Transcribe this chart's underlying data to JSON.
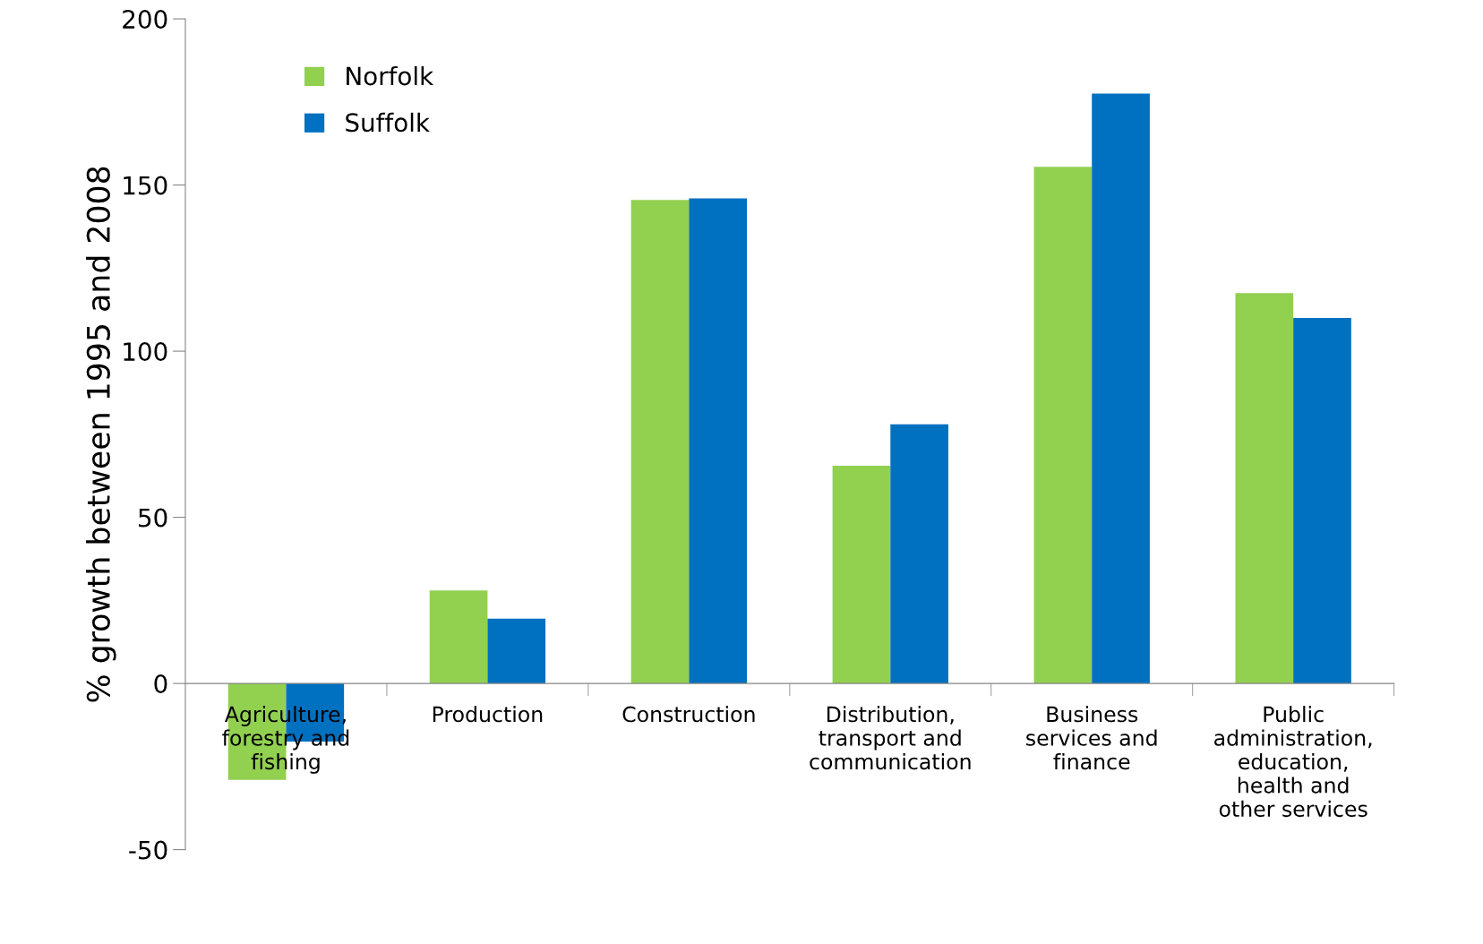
{
  "chart_data": {
    "type": "bar",
    "ylabel": "% growth between 1995 and 2008",
    "categories": [
      "Agriculture,\nforestry and\nfishing",
      "Production",
      "Construction",
      "Distribution,\ntransport and\ncommunication",
      "Business\nservices and\nfinance",
      "Public\nadministration,\neducation,\nhealth and\nother services"
    ],
    "series": [
      {
        "name": "Norfolk",
        "color": "#92d050",
        "values": [
          -29,
          28,
          145.5,
          65.5,
          155.5,
          117.5
        ]
      },
      {
        "name": "Suffolk",
        "color": "#0070c0",
        "values": [
          -17.5,
          19.5,
          146,
          78,
          177.5,
          110
        ]
      }
    ],
    "ylim": [
      -50,
      200
    ],
    "yticks": [
      -50,
      0,
      50,
      100,
      150,
      200
    ],
    "grid": false,
    "legend": "top left"
  }
}
